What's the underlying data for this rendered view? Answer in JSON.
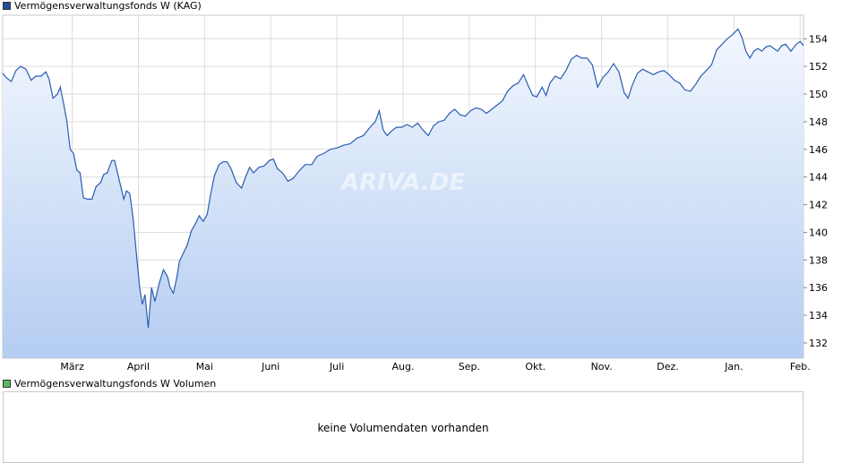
{
  "legend": {
    "price_label": "Vermögensverwaltungsfonds W (KAG)",
    "price_color": "#1f4e9c",
    "volume_label": "Vermögensverwaltungsfonds W Volumen",
    "volume_color": "#5cb85c"
  },
  "watermark": "ARIVA.DE",
  "volume": {
    "message": "keine Volumendaten vorhanden"
  },
  "colors": {
    "line": "#2a5db0",
    "fill_top": "#f3f7fe",
    "fill_bottom": "#b4cdf2",
    "grid": "#dcdcdc"
  },
  "chart_data": {
    "type": "area",
    "title": "",
    "xlabel": "",
    "ylabel": "",
    "grid": true,
    "ylim": [
      130.9,
      155.7
    ],
    "yticks": [
      132,
      134,
      136,
      138,
      140,
      142,
      144,
      146,
      148,
      150,
      152,
      154
    ],
    "month_labels": [
      "März",
      "April",
      "Mai",
      "Juni",
      "Juli",
      "Aug.",
      "Sep.",
      "Okt.",
      "Nov.",
      "Dez.",
      "Jan.",
      "Feb."
    ],
    "month_positions": [
      0.4,
      1.4,
      2.4,
      3.4,
      4.4,
      5.4,
      6.4,
      7.4,
      8.4,
      9.4,
      10.4,
      11.4
    ],
    "x_range": [
      -0.65,
      11.45
    ],
    "series": [
      {
        "values": [
          [
            -0.65,
            151.5
          ],
          [
            -0.6,
            151.2
          ],
          [
            -0.52,
            150.9
          ],
          [
            -0.45,
            151.7
          ],
          [
            -0.38,
            152.0
          ],
          [
            -0.3,
            151.8
          ],
          [
            -0.22,
            151.0
          ],
          [
            -0.15,
            151.3
          ],
          [
            -0.07,
            151.3
          ],
          [
            0.0,
            151.6
          ],
          [
            0.05,
            151.1
          ],
          [
            0.11,
            149.7
          ],
          [
            0.18,
            150.0
          ],
          [
            0.22,
            150.5
          ],
          [
            0.27,
            149.3
          ],
          [
            0.32,
            148.0
          ],
          [
            0.37,
            146.0
          ],
          [
            0.42,
            145.7
          ],
          [
            0.47,
            144.5
          ],
          [
            0.52,
            144.3
          ],
          [
            0.57,
            142.5
          ],
          [
            0.63,
            142.4
          ],
          [
            0.7,
            142.4
          ],
          [
            0.76,
            143.3
          ],
          [
            0.83,
            143.6
          ],
          [
            0.88,
            144.2
          ],
          [
            0.93,
            144.3
          ],
          [
            1.0,
            145.2
          ],
          [
            1.04,
            145.2
          ],
          [
            1.1,
            144.0
          ],
          [
            1.18,
            142.4
          ],
          [
            1.22,
            143.0
          ],
          [
            1.27,
            142.8
          ],
          [
            1.32,
            141.0
          ],
          [
            1.37,
            138.5
          ],
          [
            1.42,
            136.0
          ],
          [
            1.46,
            134.8
          ],
          [
            1.5,
            135.5
          ],
          [
            1.55,
            133.1
          ],
          [
            1.6,
            136.0
          ],
          [
            1.65,
            135.0
          ],
          [
            1.72,
            136.4
          ],
          [
            1.78,
            137.3
          ],
          [
            1.84,
            136.8
          ],
          [
            1.88,
            136.0
          ],
          [
            1.93,
            135.6
          ],
          [
            1.98,
            136.7
          ],
          [
            2.02,
            137.9
          ],
          [
            2.08,
            138.5
          ],
          [
            2.14,
            139.1
          ],
          [
            2.2,
            140.1
          ],
          [
            2.26,
            140.6
          ],
          [
            2.32,
            141.2
          ],
          [
            2.38,
            140.8
          ],
          [
            2.44,
            141.3
          ],
          [
            2.49,
            142.7
          ],
          [
            2.55,
            144.1
          ],
          [
            2.62,
            144.9
          ],
          [
            2.68,
            145.1
          ],
          [
            2.74,
            145.1
          ],
          [
            2.8,
            144.6
          ],
          [
            2.88,
            143.6
          ],
          [
            2.96,
            143.2
          ],
          [
            3.02,
            144.0
          ],
          [
            3.08,
            144.7
          ],
          [
            3.14,
            144.3
          ],
          [
            3.22,
            144.7
          ],
          [
            3.3,
            144.8
          ],
          [
            3.38,
            145.2
          ],
          [
            3.44,
            145.3
          ],
          [
            3.5,
            144.6
          ],
          [
            3.58,
            144.3
          ],
          [
            3.66,
            143.7
          ],
          [
            3.74,
            143.9
          ],
          [
            3.82,
            144.4
          ],
          [
            3.92,
            144.9
          ],
          [
            4.02,
            144.9
          ],
          [
            4.1,
            145.5
          ],
          [
            4.2,
            145.7
          ],
          [
            4.3,
            146.0
          ],
          [
            4.4,
            146.1
          ],
          [
            4.5,
            146.3
          ],
          [
            4.6,
            146.4
          ],
          [
            4.7,
            146.8
          ],
          [
            4.8,
            147.0
          ],
          [
            4.9,
            147.6
          ],
          [
            4.98,
            148.0
          ],
          [
            5.04,
            148.8
          ],
          [
            5.1,
            147.4
          ],
          [
            5.16,
            147.0
          ],
          [
            5.22,
            147.3
          ],
          [
            5.3,
            147.6
          ],
          [
            5.38,
            147.6
          ],
          [
            5.46,
            147.8
          ],
          [
            5.54,
            147.6
          ],
          [
            5.62,
            147.9
          ],
          [
            5.7,
            147.4
          ],
          [
            5.78,
            147.0
          ],
          [
            5.86,
            147.7
          ],
          [
            5.94,
            148.0
          ],
          [
            6.02,
            148.1
          ],
          [
            6.1,
            148.6
          ],
          [
            6.18,
            148.9
          ],
          [
            6.26,
            148.5
          ],
          [
            6.34,
            148.4
          ],
          [
            6.42,
            148.8
          ],
          [
            6.5,
            149.0
          ],
          [
            6.58,
            148.9
          ],
          [
            6.66,
            148.6
          ],
          [
            6.74,
            148.9
          ],
          [
            6.82,
            149.2
          ],
          [
            6.9,
            149.5
          ],
          [
            6.98,
            150.2
          ],
          [
            7.06,
            150.6
          ],
          [
            7.14,
            150.8
          ],
          [
            7.22,
            151.4
          ],
          [
            7.3,
            150.5
          ],
          [
            7.36,
            149.9
          ],
          [
            7.42,
            149.8
          ],
          [
            7.5,
            150.5
          ],
          [
            7.56,
            149.9
          ],
          [
            7.62,
            150.8
          ],
          [
            7.7,
            151.3
          ],
          [
            7.78,
            151.1
          ],
          [
            7.86,
            151.7
          ],
          [
            7.94,
            152.5
          ],
          [
            8.02,
            152.8
          ],
          [
            8.1,
            152.6
          ],
          [
            8.18,
            152.6
          ],
          [
            8.26,
            152.1
          ],
          [
            8.34,
            150.5
          ],
          [
            8.42,
            151.2
          ],
          [
            8.5,
            151.6
          ],
          [
            8.58,
            152.2
          ],
          [
            8.66,
            151.6
          ],
          [
            8.74,
            150.1
          ],
          [
            8.8,
            149.7
          ],
          [
            8.86,
            150.6
          ],
          [
            8.94,
            151.5
          ],
          [
            9.02,
            151.8
          ],
          [
            9.1,
            151.6
          ],
          [
            9.18,
            151.4
          ],
          [
            9.26,
            151.6
          ],
          [
            9.34,
            151.7
          ],
          [
            9.42,
            151.4
          ],
          [
            9.5,
            151.0
          ],
          [
            9.58,
            150.8
          ],
          [
            9.66,
            150.3
          ],
          [
            9.74,
            150.2
          ],
          [
            9.82,
            150.7
          ],
          [
            9.9,
            151.3
          ],
          [
            9.98,
            151.7
          ],
          [
            10.06,
            152.1
          ],
          [
            10.14,
            153.2
          ],
          [
            10.22,
            153.6
          ],
          [
            10.3,
            154.0
          ],
          [
            10.38,
            154.3
          ],
          [
            10.46,
            154.7
          ],
          [
            10.52,
            154.1
          ],
          [
            10.58,
            153.1
          ],
          [
            10.64,
            152.6
          ],
          [
            10.7,
            153.1
          ],
          [
            10.76,
            153.3
          ],
          [
            10.82,
            153.1
          ],
          [
            10.88,
            153.4
          ],
          [
            10.94,
            153.5
          ],
          [
            11.0,
            153.3
          ],
          [
            11.06,
            153.1
          ],
          [
            11.12,
            153.5
          ],
          [
            11.18,
            153.6
          ],
          [
            11.26,
            153.1
          ],
          [
            11.34,
            153.6
          ],
          [
            11.4,
            153.8
          ],
          [
            11.45,
            153.5
          ]
        ]
      }
    ]
  }
}
